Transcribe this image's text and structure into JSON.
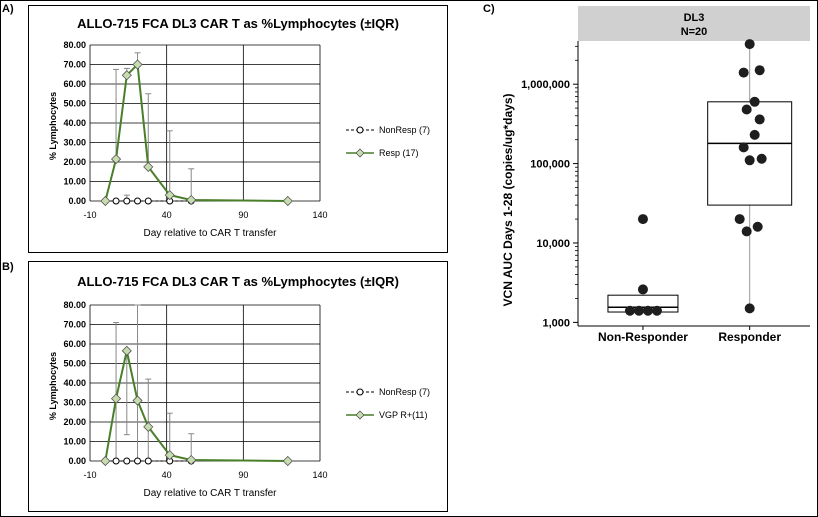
{
  "panels": {
    "A": {
      "letter": "A)",
      "title": "ALLO-715 FCA DL3 CAR T as %Lymphocytes (±IQR)",
      "ylabel": "% Lymphocytes",
      "xlabel": "Day relative to CAR T transfer"
    },
    "B": {
      "letter": "B)",
      "title": "ALLO-715 FCA DL3 CAR T as %Lymphocytes (±IQR)",
      "ylabel": "% Lymphocytes",
      "xlabel": "Day relative to CAR T transfer"
    },
    "C": {
      "letter": "C)",
      "header_line1": "DL3",
      "header_line2": "N=20",
      "ylabel": "VCN AUC Days 1-28 (copies/ug*days)"
    }
  },
  "colors": {
    "resp_line": "#4a7f2a",
    "resp_marker_fill": "#c7ddb0",
    "header_bg": "#d0d0d0",
    "dots": "#1e1e1e"
  },
  "chart_data": [
    {
      "id": "A",
      "type": "line",
      "title": "ALLO-715 FCA DL3 CAR T as %Lymphocytes (±IQR)",
      "xlabel": "Day relative to CAR T transfer",
      "ylabel": "% Lymphocytes",
      "xlim": [
        -10,
        140
      ],
      "ylim": [
        0,
        80
      ],
      "xticks": [
        "-10",
        "40",
        "90",
        "140"
      ],
      "yticks": [
        "0.00",
        "10.00",
        "20.00",
        "30.00",
        "40.00",
        "50.00",
        "60.00",
        "70.00",
        "80.00"
      ],
      "legend": "right",
      "series": [
        {
          "name": "NonResp (7)",
          "x": [
            0,
            7,
            14,
            21,
            28,
            42,
            56
          ],
          "y": [
            0,
            0,
            0,
            0,
            0,
            0,
            0
          ],
          "upper": [
            0,
            0,
            3,
            0,
            0,
            0,
            0
          ]
        },
        {
          "name": "Resp (17)",
          "x": [
            0,
            7,
            14,
            21,
            28,
            42,
            56,
            119
          ],
          "y": [
            0,
            21.5,
            64.5,
            70,
            17.5,
            3,
            0.5,
            0
          ],
          "upper": [
            0,
            67.5,
            68,
            76,
            55,
            36,
            16.5,
            0
          ]
        }
      ]
    },
    {
      "id": "B",
      "type": "line",
      "title": "ALLO-715 FCA DL3 CAR T as %Lymphocytes (±IQR)",
      "xlabel": "Day relative to CAR T transfer",
      "ylabel": "% Lymphocytes",
      "xlim": [
        -10,
        140
      ],
      "ylim": [
        0,
        80
      ],
      "xticks": [
        "-10",
        "40",
        "90",
        "140"
      ],
      "yticks": [
        "0.00",
        "10.00",
        "20.00",
        "30.00",
        "40.00",
        "50.00",
        "60.00",
        "70.00",
        "80.00"
      ],
      "legend": "right",
      "series": [
        {
          "name": "NonResp (7)",
          "x": [
            0,
            7,
            14,
            21,
            28,
            42,
            56
          ],
          "y": [
            0,
            0,
            0,
            0,
            0,
            0,
            0
          ],
          "upper": [
            0,
            0,
            0,
            0,
            0,
            0,
            0
          ]
        },
        {
          "name": "VGP R+(11)",
          "x": [
            0,
            7,
            14,
            21,
            28,
            42,
            56,
            119
          ],
          "y": [
            0,
            32,
            56.5,
            31,
            17.5,
            3,
            0.5,
            0
          ],
          "upper": [
            0,
            71,
            57,
            80,
            42,
            24.5,
            14,
            0
          ],
          "lower": [
            0,
            0,
            13.5,
            0,
            0,
            0,
            0,
            0
          ]
        }
      ]
    },
    {
      "id": "C",
      "type": "scatter",
      "subtype": "box-dot",
      "ylabel": "VCN AUC Days 1-28 (copies/ug*days)",
      "ylog": true,
      "ylim": [
        900,
        3500000
      ],
      "yticks": [
        "1,000",
        "10,000",
        "100,000",
        "1,000,000"
      ],
      "categories": [
        "Non-Responder",
        "Responder"
      ],
      "groups": [
        {
          "name": "Non-Responder",
          "values": [
            1400,
            1400,
            1400,
            1400,
            2600,
            20000
          ],
          "box": {
            "q1": 1350,
            "median": 1550,
            "q3": 2200,
            "whisker_low": 1350,
            "whisker_high": 2200
          }
        },
        {
          "name": "Responder",
          "values": [
            1500,
            14000,
            16000,
            20000,
            110000,
            115000,
            160000,
            230000,
            360000,
            480000,
            600000,
            1400000,
            1500000,
            3200000
          ],
          "box": {
            "q1": 30000,
            "median": 180000,
            "q3": 600000,
            "whisker_low": 1500,
            "whisker_high": 3200000
          }
        }
      ]
    }
  ]
}
